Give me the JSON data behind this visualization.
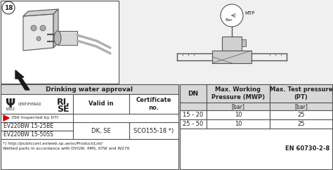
{
  "bg_color": "#f0f0f0",
  "white": "#ffffff",
  "light_gray": "#d8d8d8",
  "mid_gray": "#c0c0c0",
  "border_color": "#555555",
  "dark_border": "#333333",
  "text_color": "#222222",
  "red_color": "#cc0000",
  "drinking_header": "Drinking water approval",
  "cert_label": "CERTIFIERAD",
  "cert_num": "1002",
  "valid_in_label": "Valid in",
  "cert_no_label": "Certificate\nno.",
  "dti_label": "356 Inspected by DTI",
  "row1_model": "EV220BW 15-25BE",
  "row2_model": "EV220BW 15-50SS",
  "valid_in": "DK, SE",
  "cert_no": "SCO155-18 *)",
  "footnote1": "*) http://publiccert.extweb.sp.se/sv/Product/List/",
  "footnote2": "Wetted parts in accordance with DVGW, 4MS, KTW and W270",
  "dn_label": "DN",
  "mwp_label": "Max. Working\nPressure (MWP)",
  "mtp_label": "Max. Test pressure\n(PT)",
  "bar_label": "[bar]",
  "dn_rows": [
    "15 - 20",
    "25 - 50"
  ],
  "mwp_values": [
    "10",
    "10"
  ],
  "mtp_values": [
    "25",
    "25"
  ],
  "en_standard": "EN 60730-2-8",
  "fig_number": "18",
  "mtp_diagram_label": "MTP",
  "bar_diagram_label": "Bar"
}
